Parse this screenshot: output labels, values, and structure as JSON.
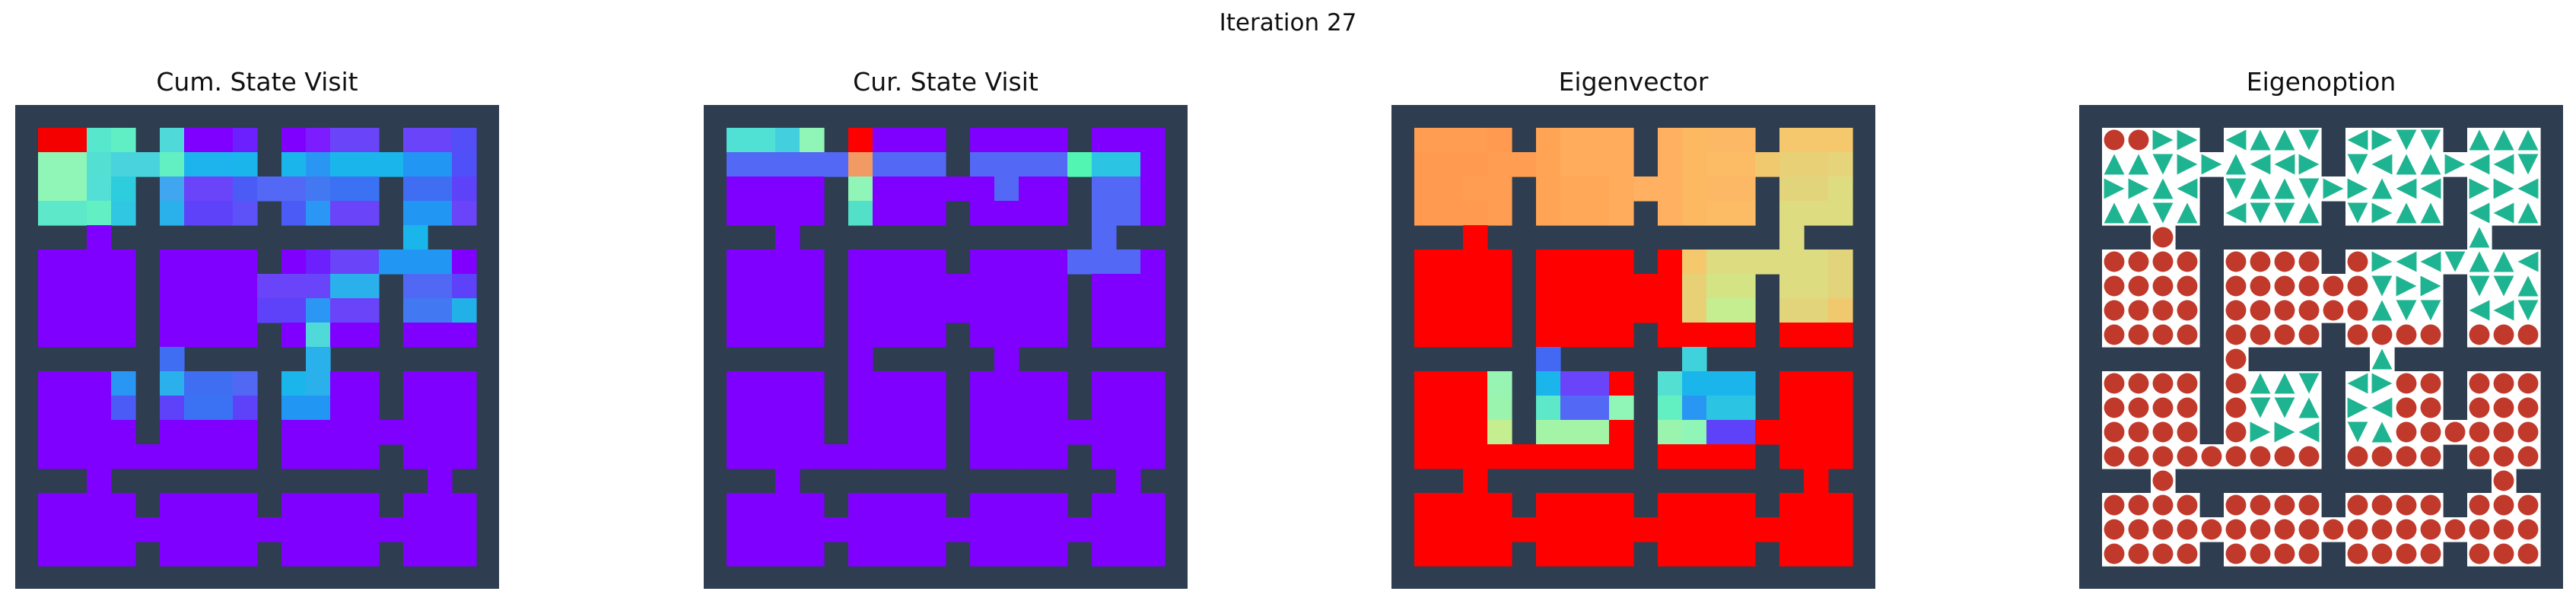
{
  "figure": {
    "title": "Iteration 27"
  },
  "panels": [
    {
      "id": "cum",
      "title": "Cum. State Visit"
    },
    {
      "id": "cur",
      "title": "Cur. State Visit"
    },
    {
      "id": "eigvec",
      "title": "Eigenvector"
    },
    {
      "id": "eigopt",
      "title": "Eigenoption"
    }
  ],
  "colors": {
    "wall": "#2e3d4f",
    "floor": "#ffffff",
    "low": "#7f00ff",
    "arrow": "#1fb491",
    "dot": "#c1392b"
  },
  "heatmaps": {
    "cum": [
      "#f40000 #57e7cd #60eec5 #4fd9d9 #7f00ff #6c20fd #7f00ff #7d1cfe #6a44f9 #7d00ff #6a44f9 #534ef8",
      "#8ff6b8 #53e0d3 #49d3dd #62f0c3 #1db3ec #1ab6eb #1ab6eb #2a96f3 #1ab6eb #1ab6eb #2196f3 #5050f8",
      "#8ff6b8 #53dfd6 #2ecdde #40a6ef #6a44f9 #4a5cf5 #5368f4 #4278f2 #3a72f3 #5050f8 #3f6ef3 #5e42f9",
      "#5ce8c9 #62f0c3 #2fc7e2 #2ab0ea #5e42f9 #5c52f7 #4a5cf5 #2b96f3 #6a44f9 #3a72f3 #2296f3 #6a44f9",
      "#7f00ff #7f00ff #7f00ff #7f00ff #7f00ff #7f00ff #7f00ff #7f00ff #7f00ff #7f00ff #1ab6eb #7f00ff",
      "#7f00ff #7f00ff #7f00ff #7f00ff #7f00ff #7f00ff #7f00ff #6c20fd #6a44f9 #2296f3 #2296f3 #7f00ff",
      "#7f00ff #7f00ff #7f00ff #7f00ff #7f00ff #7f00ff #6a44f9 #6a44f9 #2ab0ea #5068f4 #5068f4 #5e42f9",
      "#7f00ff #7f00ff #7f00ff #7f00ff #7f00ff #7f00ff #5e42f9 #2b96f3 #6a44f9 #4a5cf5 #4278f2 #22b0e8",
      "#7f00ff #7f00ff #7f00ff #7f00ff #7f00ff #7f00ff #7f00ff #4fd9d9 #7f00ff #7f00ff #7f00ff #7f00ff",
      "#7f00ff #7f00ff #4a5cf5 #3f6ef3 #7f00ff #7f00ff #4278f2 #2ab0ea #7f00ff #7f00ff #7f00ff #7f00ff",
      "#7f00ff #7f00ff #2a96f3 #2ab0ea #3f6ef3 #5068f4 #1ab6eb #2ab0ea #7f00ff #7f00ff #7f00ff #7f00ff",
      "#7f00ff #7f00ff #4a5cf5 #5e42f9 #3a72f3 #5e42f9 #2296f3 #2296f3 #7f00ff #7f00ff #7f00ff #7f00ff",
      "#7f00ff #7f00ff #7f00ff #7f00ff #7f00ff #7f00ff #7f00ff #7f00ff #7f00ff #7f00ff #7f00ff #7f00ff",
      "#7f00ff #7f00ff #7f00ff #7f00ff #7f00ff #7f00ff #7f00ff #7f00ff #7f00ff #7f00ff #7f00ff #7f00ff",
      "#7f00ff #7f00ff #7f00ff #7f00ff #7f00ff #7f00ff #7f00ff #7f00ff #7f00ff #7f00ff #7f00ff #7f00ff",
      "#7f00ff #7f00ff #7f00ff #7f00ff #7f00ff #7f00ff #7f00ff #7f00ff #7f00ff #7f00ff #7f00ff #7f00ff",
      "#7f00ff #7f00ff #7f00ff #7f00ff #7f00ff #7f00ff #7f00ff #7f00ff #7f00ff #7f00ff #7f00ff #7f00ff",
      "#7f00ff #7f00ff #7f00ff #7f00ff #7f00ff #7f00ff #7f00ff #7f00ff #7f00ff #7f00ff #7f00ff #7f00ff"
    ],
    "cur": [
      "#50e0d4 #43cfdd #8ff6b8 #ff0000 #7f00ff #7f00ff #7f00ff #7f00ff #7f00ff #2bc4e3 #7f00ff #7f00ff",
      "#5368f4 #5368f4 #5368f4 #f29a63 #5368f4 #5368f4 #5368f4 #5368f4 #5368f4 #53f5b3 #2bc4e3 #7f00ff",
      "#7f00ff #7f00ff #7f00ff #8ff6b8 #7f00ff #7f00ff #7f00ff #5368f4 #7f00ff #7f00ff #5368f4 #7f00ff",
      "#7f00ff #7f00ff #7f00ff #53e0c9 #7f00ff #7f00ff #7f00ff #7f00ff #7f00ff #7f00ff #5368f4 #7f00ff",
      "#7f00ff #7f00ff #7f00ff #7f00ff #7f00ff #7f00ff #7f00ff #7f00ff #7f00ff #7f00ff #5368f4 #7f00ff",
      "#7f00ff #7f00ff #7f00ff #7f00ff #7f00ff #7f00ff #7f00ff #7f00ff #7f00ff #5368f4 #5368f4 #7f00ff",
      "#7f00ff #7f00ff #7f00ff #7f00ff #7f00ff #7f00ff #7f00ff #7f00ff #7f00ff #7f00ff #7f00ff #7f00ff",
      "#7f00ff #7f00ff #7f00ff #7f00ff #7f00ff #7f00ff #7f00ff #7f00ff #7f00ff #7f00ff #7f00ff #7f00ff",
      "#7f00ff #7f00ff #7f00ff #7f00ff #7f00ff #7f00ff #7f00ff #7f00ff #7f00ff #7f00ff #7f00ff #7f00ff",
      "#7f00ff #7f00ff #7f00ff #7f00ff #7f00ff #7f00ff #7f00ff #7f00ff #7f00ff #7f00ff #7f00ff #7f00ff",
      "#7f00ff #7f00ff #7f00ff #7f00ff #7f00ff #7f00ff #7f00ff #7f00ff #7f00ff #7f00ff #7f00ff #7f00ff",
      "#7f00ff #7f00ff #7f00ff #7f00ff #7f00ff #7f00ff #7f00ff #7f00ff #7f00ff #7f00ff #7f00ff #7f00ff",
      "#7f00ff #7f00ff #7f00ff #7f00ff #7f00ff #7f00ff #7f00ff #7f00ff #7f00ff #7f00ff #7f00ff #7f00ff",
      "#7f00ff #7f00ff #7f00ff #7f00ff #7f00ff #7f00ff #7f00ff #7f00ff #7f00ff #7f00ff #7f00ff #7f00ff",
      "#7f00ff #7f00ff #7f00ff #7f00ff #7f00ff #7f00ff #7f00ff #7f00ff #7f00ff #7f00ff #7f00ff #7f00ff",
      "#7f00ff #7f00ff #7f00ff #7f00ff #7f00ff #7f00ff #7f00ff #7f00ff #7f00ff #7f00ff #7f00ff #7f00ff",
      "#7f00ff #7f00ff #7f00ff #7f00ff #7f00ff #7f00ff #7f00ff #7f00ff #7f00ff #7f00ff #7f00ff #7f00ff",
      "#7f00ff #7f00ff #7f00ff #7f00ff #7f00ff #7f00ff #7f00ff #7f00ff #7f00ff #7f00ff #7f00ff #7f00ff"
    ],
    "eigvec": [
      "#ff9d52 #ff9d52 #ff9a50 #ffa454 #ffac5c #ffac5c #ffb060 #fdb862 #fcb864 #f8c068 #f5c86e #f5c86e",
      "#ff9a50 #ff9a50 #ff9d52 #ffa454 #ffac5c #ffac5c #ffb060 #fdb862 #fcbc66 #f0c86e #e8d076 #e6d47a",
      "#ff9a50 #ff9d52 #ff9d52 #ffa454 #ffa858 #ffac5c #ffb060 #fdb862 #fcb864 #f0c86e #e2d47a #dedc80",
      "#ff9a50 #ff9a50 #ff9d52 #ffa454 #ffa858 #ffac5c #ffb060 #fdb862 #fcbc66 #f0c86e #dedc80 #dedc80",
      "#ff0000 #ff0000 #ff0000 #ff0000 #ff0000 #ff0000 #ff0000 #ff0000 #ff0000 #e2d47a #dedc80 #ff0000",
      "#ff0000 #ff0000 #ff0000 #ff0000 #ff0000 #ff0000 #ff0000 #f5c86e #dedc80 #dedc80 #dedc80 #e2d47a",
      "#ff0000 #ff0000 #ff0000 #ff0000 #ff0000 #ff0000 #ff0000 #e8d076 #d4e484 #d4e484 #dedc80 #e2d47a",
      "#ff0000 #ff0000 #ff0000 #ff0000 #ff0000 #ff0000 #ff0000 #e8d076 #c4ee90 #d4e484 #e2d47a #f0c86e",
      "#ff0000 #ff0000 #ff0000 #ff0000 #ff0000 #ff0000 #ff0000 #ff0000 #ff0000 #ff0000 #ff0000 #ff0000",
      "#ff0000 #ff0000 #9af4ae #4268f4 #5e42f9 #ff0000 #8ff6b8 #3fd2dd #1ab6eb #ff0000 #ff0000 #ff0000",
      "#ff0000 #ff0000 #98f4b2 #1ab6eb #6a44f9 #ff0000 #53e0d3 #1ab6eb #1ab6eb #ff0000 #ff0000 #ff0000",
      "#ff0000 #ff0000 #9af4ae #5ce8c9 #5368f4 #8ff6b8 #62f0c3 #2a96f3 #2bc4e3 #ff0000 #ff0000 #ff0000",
      "#ff0000 #ff0000 #c4ee90 #a4f4a8 #a4f4a8 #ff0000 #9af4ae #8ff6b8 #5e42f9 #ff0000 #ff0000 #ff0000",
      "#ff0000 #ff0000 #ff0000 #ff0000 #ff0000 #ff0000 #ff0000 #ff0000 #ff0000 #ff0000 #ff0000 #ff0000",
      "#ff0000 #ff0000 #ff0000 #ff0000 #ff0000 #ff0000 #ff0000 #ff0000 #ff0000 #ff0000 #ff0000 #ff0000",
      "#ff0000 #ff0000 #ff0000 #ff0000 #ff0000 #ff0000 #ff0000 #ff0000 #ff0000 #ff0000 #ff0000 #ff0000",
      "#ff0000 #ff0000 #ff0000 #ff0000 #ff0000 #ff0000 #ff0000 #ff0000 #ff0000 #ff0000 #ff0000 #ff0000",
      "#ff0000 #ff0000 #ff0000 #ff0000 #ff0000 #ff0000 #ff0000 #ff0000 #ff0000 #ff0000 #ff0000 #ff0000"
    ]
  },
  "eigenoption": [
    "o r r l u d l r d r u u",
    "u d r u l r d l u r l d",
    "r u l d u d r u l d r l",
    "u d u l d u d r u d l u",
    "o o o o o o o o d o u o",
    "o o o o o o o r l d u l",
    "o o o o o o o d r l d u",
    "o o o o o o o u d r l d",
    "o o o o o o o o o o o o",
    "o o o o l r d u o o o o",
    "o o o o u d l r o o o o",
    "o o o o d u r l o o o o",
    "o o o o r l d u o o o o",
    "o o o o o o o o o o o o",
    "o o o o o o o o o o o o",
    "o o o o o o o o o o o o",
    "o o o o o o o o o o o o",
    "o o o o o o o o o o o o"
  ]
}
